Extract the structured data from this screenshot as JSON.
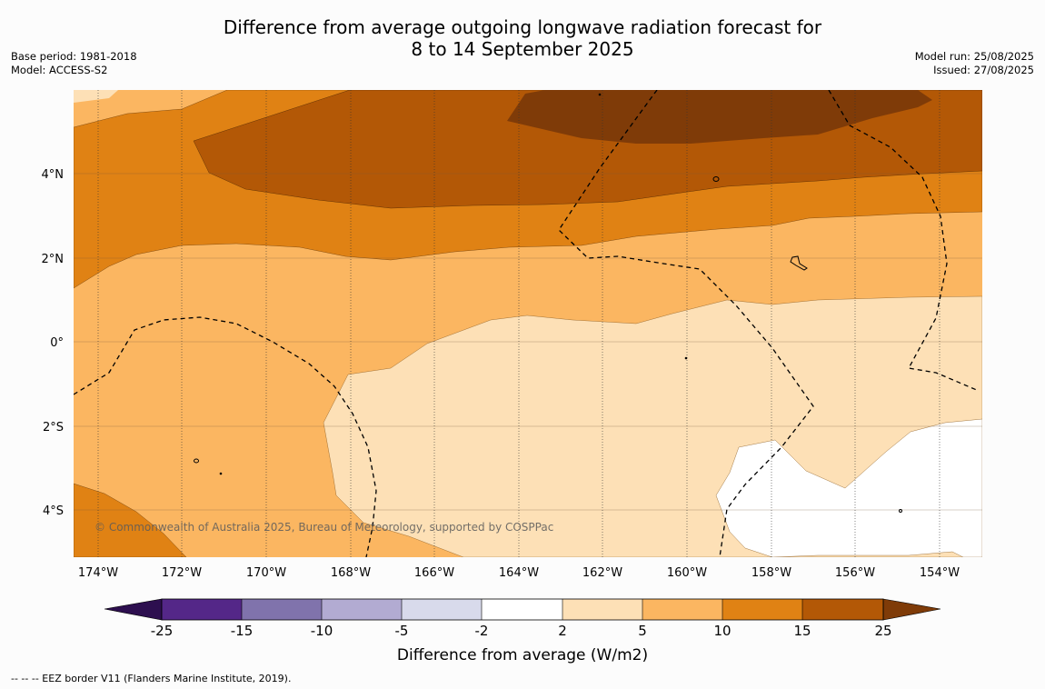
{
  "title": {
    "line1": "Difference from average outgoing longwave radiation forecast for",
    "line2": "8 to 14 September 2025"
  },
  "meta_left": {
    "base_period": "Base period: 1981-2018",
    "model": "Model: ACCESS-S2"
  },
  "meta_right": {
    "model_run": "Model run: 25/08/2025",
    "issued": "Issued: 27/08/2025"
  },
  "map": {
    "copyright": "© Commonwealth of Australia 2025, Bureau of Meteorology, supported by COSPPac",
    "lat_labels": [
      "4°N",
      "2°N",
      "0°",
      "2°S",
      "4°S"
    ],
    "lon_labels": [
      "174°W",
      "172°W",
      "170°W",
      "168°W",
      "166°W",
      "164°W",
      "162°W",
      "160°W",
      "158°W",
      "156°W",
      "154°W"
    ]
  },
  "colorbar": {
    "label": "Difference from average (W/m2)",
    "ticks": [
      "-25",
      "-15",
      "-10",
      "-5",
      "-2",
      "2",
      "5",
      "10",
      "15",
      "25"
    ],
    "colors": {
      "below_-25": "#2d0f4f",
      "-25_-15": "#542788",
      "-15_-10": "#8073ac",
      "-10_-5": "#b2abd2",
      "-5_-2": "#d8daeb",
      "-2_2": "#ffffff",
      "2_5": "#fde0b6",
      "5_10": "#fbb661",
      "10_15": "#e08214",
      "15_25": "#b35806",
      "above_25": "#7f3b08"
    }
  },
  "footer": "--  --  -- EEZ border V11 (Flanders Marine Institute, 2019)."
}
